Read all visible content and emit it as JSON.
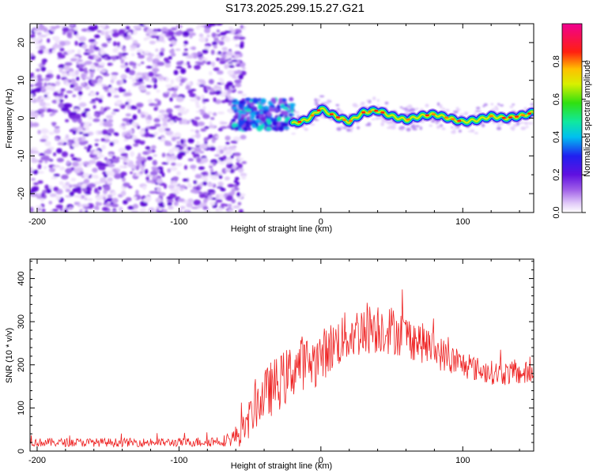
{
  "figure": {
    "title": "S173.2025.299.15.27.G21"
  },
  "chart_data": [
    {
      "type": "heatmap",
      "name": "spectrogram",
      "xlabel": "Height of straight line (km)",
      "ylabel": "Frequency (Hz)",
      "xlim": [
        -205,
        150
      ],
      "ylim": [
        -25,
        25
      ],
      "x_ticks": [
        -200,
        -100,
        0,
        100
      ],
      "y_ticks": [
        -20,
        -10,
        0,
        10,
        20
      ],
      "colorbar": {
        "label": "Normalized spectral amplitude",
        "range": [
          0,
          1
        ],
        "ticks": [
          "0.0",
          "0.2",
          "0.4",
          "0.6",
          "0.8"
        ],
        "tick_values": [
          0,
          0.2,
          0.4,
          0.6,
          0.8
        ],
        "colormap": "rainbow (white → purple → blue → cyan → green → yellow → orange → red → magenta)"
      },
      "regions": [
        {
          "x_range": [
            -205,
            -60
          ],
          "description": "noise",
          "amplitude": 0.15
        },
        {
          "x_range": [
            -62,
            -20
          ],
          "frequency_center": 1,
          "amplitude": 0.4
        },
        {
          "x_range": [
            -20,
            150
          ],
          "amplitude_peak": 0.9
        }
      ],
      "signal_track": {
        "x": [
          -20,
          -10,
          0,
          10,
          20,
          30,
          40,
          50,
          60,
          70,
          80,
          90,
          100,
          110,
          120,
          130,
          140,
          150
        ],
        "frequency": [
          -1.5,
          -0.5,
          2.5,
          0.5,
          -1.0,
          1.5,
          2.0,
          0.5,
          -0.5,
          0.5,
          1.0,
          0.0,
          -1.0,
          -0.5,
          0.5,
          0.0,
          0.5,
          1.5
        ]
      }
    },
    {
      "type": "line",
      "name": "snr",
      "xlabel": "Height of straight line (km)",
      "ylabel": "SNR (10 * v/v)",
      "xlim": [
        -205,
        150
      ],
      "ylim": [
        0,
        445
      ],
      "x_ticks": [
        -200,
        -100,
        0,
        100
      ],
      "y_ticks": [
        0,
        100,
        200,
        300,
        400
      ],
      "series": [
        {
          "color": "#ee2222",
          "x": [
            -205,
            -180,
            -150,
            -120,
            -100,
            -80,
            -65,
            -55,
            -45,
            -35,
            -25,
            -15,
            -5,
            5,
            15,
            25,
            35,
            45,
            55,
            65,
            75,
            85,
            95,
            105,
            115,
            125,
            135,
            150
          ],
          "y": [
            20,
            20,
            20,
            20,
            20,
            22,
            25,
            45,
            110,
            145,
            170,
            205,
            205,
            235,
            260,
            275,
            290,
            285,
            275,
            260,
            245,
            225,
            205,
            195,
            185,
            180,
            180,
            180
          ],
          "spread": [
            10,
            10,
            10,
            10,
            10,
            12,
            14,
            35,
            55,
            65,
            65,
            65,
            60,
            60,
            60,
            60,
            65,
            60,
            55,
            50,
            45,
            40,
            35,
            30,
            28,
            28,
            28,
            28
          ]
        }
      ]
    }
  ]
}
